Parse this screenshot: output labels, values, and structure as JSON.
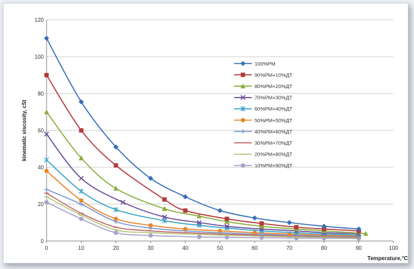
{
  "chart_data": {
    "type": "line",
    "title": "",
    "xlabel": "Temperature,°C",
    "ylabel": "kinematic viscosity, cSt",
    "xlim": [
      0,
      100
    ],
    "ylim": [
      0,
      120
    ],
    "xticks": [
      0,
      10,
      20,
      30,
      40,
      50,
      60,
      70,
      80,
      90,
      100
    ],
    "yticks": [
      0,
      20,
      40,
      60,
      80,
      100,
      120
    ],
    "grid": "horizontal",
    "legend_position": "right",
    "series": [
      {
        "name": "100%РМ",
        "color": "#3a6fb8",
        "marker": "diamond",
        "x": [
          0,
          10,
          20,
          30,
          40,
          50,
          60,
          70,
          80,
          90
        ],
        "y": [
          110,
          75.5,
          51,
          34,
          24,
          16.5,
          12.5,
          10,
          8,
          6.5
        ]
      },
      {
        "name": "90%РМ+10%ДТ",
        "color": "#b23a3a",
        "marker": "square",
        "x": [
          0,
          10,
          20,
          34,
          40,
          52,
          62,
          72,
          80,
          90
        ],
        "y": [
          90,
          60,
          41,
          22.5,
          16.5,
          12,
          9.5,
          7.5,
          6.5,
          5.5
        ]
      },
      {
        "name": "80%РМ+20%ДТ",
        "color": "#8aad3c",
        "marker": "triangle",
        "x": [
          0,
          10,
          20,
          34,
          44,
          52,
          62,
          72,
          80,
          92
        ],
        "y": [
          70,
          45,
          28.5,
          17.5,
          13.5,
          10.5,
          8,
          6.5,
          5.5,
          4
        ]
      },
      {
        "name": "70%РМ+30%ДТ",
        "color": "#6a4c9c",
        "marker": "x",
        "x": [
          0,
          10,
          22,
          34,
          44,
          52,
          62,
          72,
          80,
          90
        ],
        "y": [
          58,
          34,
          21,
          13,
          10,
          8,
          6.5,
          5.5,
          4.5,
          4
        ]
      },
      {
        "name": "60%РМ+40%ДТ",
        "color": "#3aa3c4",
        "marker": "star",
        "x": [
          0,
          10,
          20,
          34,
          44,
          52,
          62,
          72,
          80,
          90
        ],
        "y": [
          44,
          27,
          17,
          11,
          8.5,
          7,
          5.5,
          4.5,
          3.8,
          3.2
        ]
      },
      {
        "name": "50%РМ+50%ДТ",
        "color": "#e8872f",
        "marker": "circle",
        "x": [
          0,
          10,
          20,
          30,
          40,
          50,
          60,
          70,
          80,
          90
        ],
        "y": [
          38,
          22,
          12,
          8.5,
          6.5,
          5.5,
          4.5,
          3.8,
          3.2,
          2.8
        ]
      },
      {
        "name": "40%РМ+60%ДТ",
        "color": "#7e9bd0",
        "marker": "plus",
        "x": [
          0,
          10,
          20,
          30,
          40,
          50,
          60,
          70,
          80,
          90
        ],
        "y": [
          28,
          20,
          10.5,
          7,
          5.5,
          4.5,
          3.8,
          3.2,
          2.8,
          2.4
        ]
      },
      {
        "name": "30%РМ+70%ДТ",
        "color": "#c06a6a",
        "marker": "dash",
        "x": [
          0,
          10,
          20,
          30,
          40,
          50,
          60,
          70,
          80,
          90
        ],
        "y": [
          26,
          15,
          7.5,
          5.5,
          4.5,
          3.8,
          3.2,
          2.8,
          2.4,
          2
        ]
      },
      {
        "name": "20%РМ+80%ДТ",
        "color": "#b5c97a",
        "marker": "dash",
        "x": [
          0,
          10,
          20,
          30,
          40,
          50,
          60,
          70,
          80,
          90
        ],
        "y": [
          24,
          14,
          6,
          4.5,
          3.8,
          3.2,
          2.8,
          2.4,
          2,
          1.8
        ]
      },
      {
        "name": "10%РМ+90%ДТ",
        "color": "#a7a2c9",
        "marker": "circle",
        "x": [
          0,
          10,
          20,
          30,
          44,
          52,
          62,
          72,
          80,
          90
        ],
        "y": [
          21,
          12,
          4.5,
          3,
          2.2,
          2,
          1.8,
          1.6,
          1.5,
          1.4
        ]
      }
    ]
  }
}
